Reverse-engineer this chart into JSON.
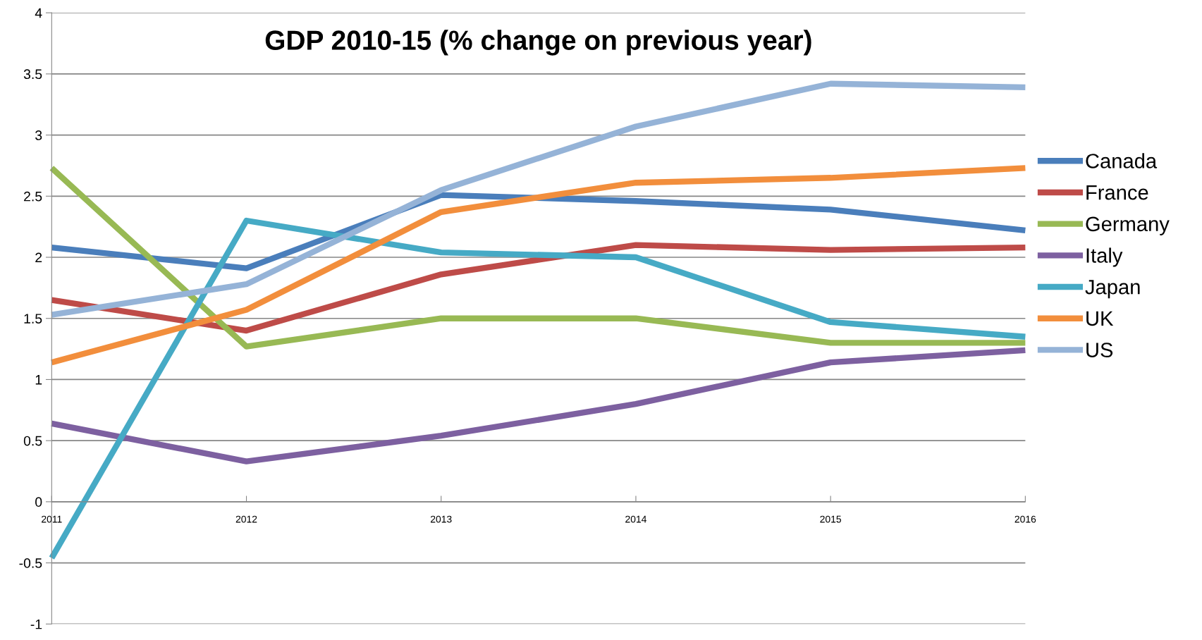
{
  "chart_data": {
    "type": "line",
    "title": "GDP 2010-15 (% change on previous year)",
    "x": [
      2011,
      2012,
      2013,
      2014,
      2015,
      2016
    ],
    "xlim": [
      2011,
      2016
    ],
    "xticks": [
      2011,
      2012,
      2013,
      2014,
      2015,
      2016
    ],
    "ylim": [
      -1,
      4
    ],
    "yticks": [
      -1,
      -0.5,
      0,
      0.5,
      1,
      1.5,
      2,
      2.5,
      3,
      3.5,
      4
    ],
    "grid": "y",
    "legend": "right",
    "marker": "none",
    "line_style": "solid",
    "series": [
      {
        "name": "Canada",
        "color": "#4a7ebb",
        "values": [
          2.08,
          1.91,
          2.51,
          2.46,
          2.39,
          2.22
        ]
      },
      {
        "name": "France",
        "color": "#be4b48",
        "values": [
          1.65,
          1.4,
          1.86,
          2.1,
          2.06,
          2.08
        ]
      },
      {
        "name": "Germany",
        "color": "#98b954",
        "values": [
          2.73,
          1.27,
          1.5,
          1.5,
          1.3,
          1.3
        ]
      },
      {
        "name": "Italy",
        "color": "#7d60a0",
        "values": [
          0.64,
          0.33,
          0.54,
          0.8,
          1.14,
          1.24
        ]
      },
      {
        "name": "Japan",
        "color": "#46aac5",
        "values": [
          -0.46,
          2.3,
          2.04,
          2.0,
          1.47,
          1.35
        ]
      },
      {
        "name": "UK",
        "color": "#f28e3c",
        "values": [
          1.14,
          1.57,
          2.37,
          2.61,
          2.65,
          2.73
        ]
      },
      {
        "name": "US",
        "color": "#95b3d7",
        "values": [
          1.53,
          1.78,
          2.55,
          3.07,
          3.42,
          3.39
        ]
      }
    ]
  }
}
